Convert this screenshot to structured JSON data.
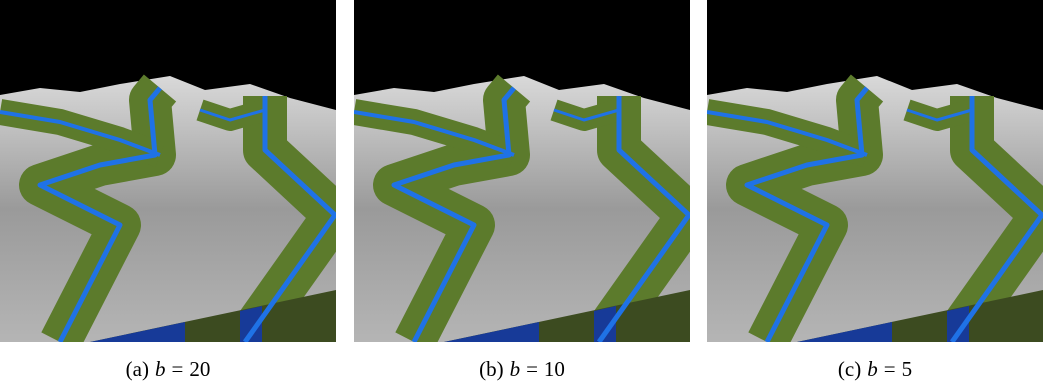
{
  "figure": {
    "panels": [
      {
        "label": "(a)",
        "variable": "b",
        "relation": "=",
        "value": "20"
      },
      {
        "label": "(b)",
        "variable": "b",
        "relation": "=",
        "value": "10"
      },
      {
        "label": "(c)",
        "variable": "b",
        "relation": "=",
        "value": "5"
      }
    ]
  }
}
